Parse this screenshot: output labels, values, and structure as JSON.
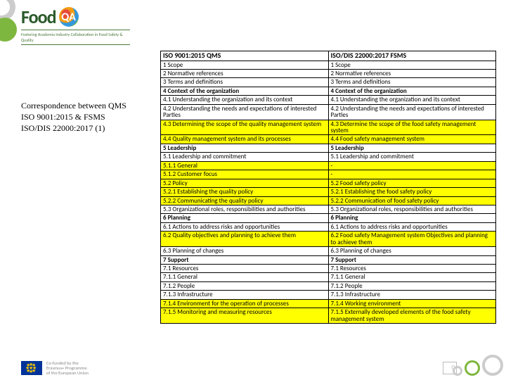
{
  "logo": {
    "brand": "Food",
    "qa": "QA",
    "tagline": "Fostering Academia Industry Collaboration in Food Safety & Quality"
  },
  "side": {
    "l1": "Correspondence between QMS",
    "l2": "ISO 9001:2015 & FSMS",
    "l3": "ISO/DIS 22000:2017 (1)"
  },
  "headers": {
    "left": "ISO 9001:2015 QMS",
    "right": "ISO/DIS 22000:2017 FSMS"
  },
  "rows": [
    {
      "l": "1 Scope",
      "r": "1 Scope"
    },
    {
      "l": "2 Normative references",
      "r": "2 Normative references"
    },
    {
      "l": "3 Terms and definitions",
      "r": "3 Terms and definitions"
    },
    {
      "l": "4 Context of the organization",
      "r": "4 Context of the organization",
      "bold": true
    },
    {
      "l": "4.1 Understanding the organization and its context",
      "r": "4.1 Understanding the organization and its context"
    },
    {
      "l": "4.2 Understanding the needs and expectations of interested Parties",
      "r": "4.2 Understanding the needs and expectations of interested Parties"
    },
    {
      "l": "4.3 Determining the scope of the quality management system",
      "r": "4.3 Determine the scope of the food safety management system",
      "hl": true
    },
    {
      "l": "4.4 Quality management system and its processes",
      "r": "4.4 Food safety management system",
      "hl": true
    },
    {
      "l": "5 Leadership",
      "r": "5 Leadership",
      "bold": true
    },
    {
      "l": "5.1 Leadership and commitment",
      "r": "5.1 Leadership and commitment"
    },
    {
      "l": "5.1.1 General",
      "r": "-",
      "hl": true
    },
    {
      "l": "5.1.2 Customer focus",
      "r": "-",
      "hl": true
    },
    {
      "l": "5.2 Policy",
      "r": "5.2 Food safety policy",
      "hl": true
    },
    {
      "l": "5.2.1 Establishing the quality policy",
      "r": "5.2.1 Establishing the food safety policy",
      "hl": true
    },
    {
      "l": "5.2.2 Communicating the quality policy",
      "r": "5.2.2 Communication of food safety policy",
      "hl": true
    },
    {
      "l": "5.3 Organizational roles, responsibilities and authorities",
      "r": "5.3 Organizational roles, responsibilities and authorities"
    },
    {
      "l": "6 Planning",
      "r": "6 Planning",
      "bold": true
    },
    {
      "l": "6.1 Actions to address risks and opportunities",
      "r": "6.1 Actions to address risks and opportunities"
    },
    {
      "l": "6.2 Quality objectives and planning to achieve them",
      "r": "6.2 Food safety Management system Objectives and planning to achieve them",
      "hl": true
    },
    {
      "l": "6.3 Planning of changes",
      "r": "6.3 Planning of changes"
    },
    {
      "l": "7 Support",
      "r": "7 Support",
      "bold": true
    },
    {
      "l": "7.1 Resources",
      "r": "7.1 Resources"
    },
    {
      "l": "7.1.1 General",
      "r": "7.1.1 General"
    },
    {
      "l": "7.1.2 People",
      "r": "7.1.2 People"
    },
    {
      "l": "7.1.3 Infrastructure",
      "r": "7.1.3 Infrastructure"
    },
    {
      "l": "7.1.4 Environment for the operation of processes",
      "r": "7.1.4 Working environment",
      "hl": true
    },
    {
      "l": "7.1.5 Monitoring and measuring resources",
      "r": "7.1.5 Externally developed elements of the food safety management system",
      "hl": true
    }
  ],
  "footer": {
    "l1": "Co-funded by the",
    "l2": "Erasmus+ Programme",
    "l3": "of the European Union"
  },
  "page": "0",
  "colors": {
    "highlight": "#ffff00",
    "brand_green": "#7eb73f",
    "text_green": "#2a5a2a"
  }
}
